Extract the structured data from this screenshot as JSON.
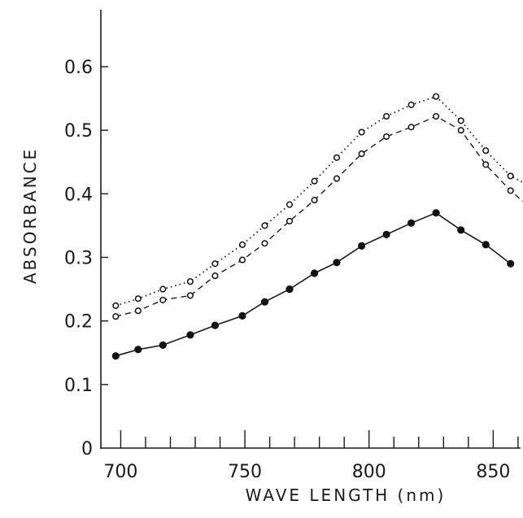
{
  "chart_data": {
    "type": "line",
    "xlabel": "WAVE LENGTH (nm)",
    "ylabel": "ABSORBANCE",
    "xlim": [
      692,
      862
    ],
    "ylim": [
      0,
      0.7
    ],
    "xticks": [
      700,
      750,
      800,
      850
    ],
    "xtick_labels": [
      "700",
      "750",
      "800",
      "850"
    ],
    "yticks": [
      0,
      0.1,
      0.2,
      0.3,
      0.4,
      0.5,
      0.6
    ],
    "ytick_labels": [
      "0",
      "0.1",
      "0.2",
      "0.3",
      "0.4",
      "0.5",
      "0.6"
    ],
    "grid": false,
    "series": [
      {
        "style": "dotted",
        "marker": "open-circle",
        "x": [
          698,
          707,
          717,
          728,
          738,
          749,
          758,
          768,
          778,
          787,
          797,
          807,
          817,
          827,
          837,
          847,
          857,
          862
        ],
        "y": [
          0.224,
          0.235,
          0.25,
          0.262,
          0.29,
          0.32,
          0.35,
          0.383,
          0.42,
          0.457,
          0.497,
          0.522,
          0.54,
          0.553,
          0.515,
          0.468,
          0.428,
          0.418
        ]
      },
      {
        "style": "dashed",
        "marker": "open-circle",
        "x": [
          698,
          707,
          717,
          728,
          738,
          749,
          758,
          768,
          778,
          787,
          797,
          807,
          817,
          827,
          837,
          847,
          857,
          862
        ],
        "y": [
          0.207,
          0.216,
          0.233,
          0.24,
          0.271,
          0.296,
          0.322,
          0.357,
          0.39,
          0.424,
          0.463,
          0.49,
          0.505,
          0.522,
          0.5,
          0.446,
          0.405,
          0.388
        ]
      },
      {
        "style": "solid",
        "marker": "filled-circle",
        "x": [
          698,
          707,
          717,
          728,
          738,
          749,
          758,
          768,
          778,
          787,
          797,
          807,
          817,
          827,
          837,
          847,
          857
        ],
        "y": [
          0.145,
          0.155,
          0.162,
          0.178,
          0.193,
          0.208,
          0.23,
          0.25,
          0.275,
          0.292,
          0.318,
          0.336,
          0.354,
          0.37,
          0.343,
          0.32,
          0.29
        ]
      }
    ]
  }
}
